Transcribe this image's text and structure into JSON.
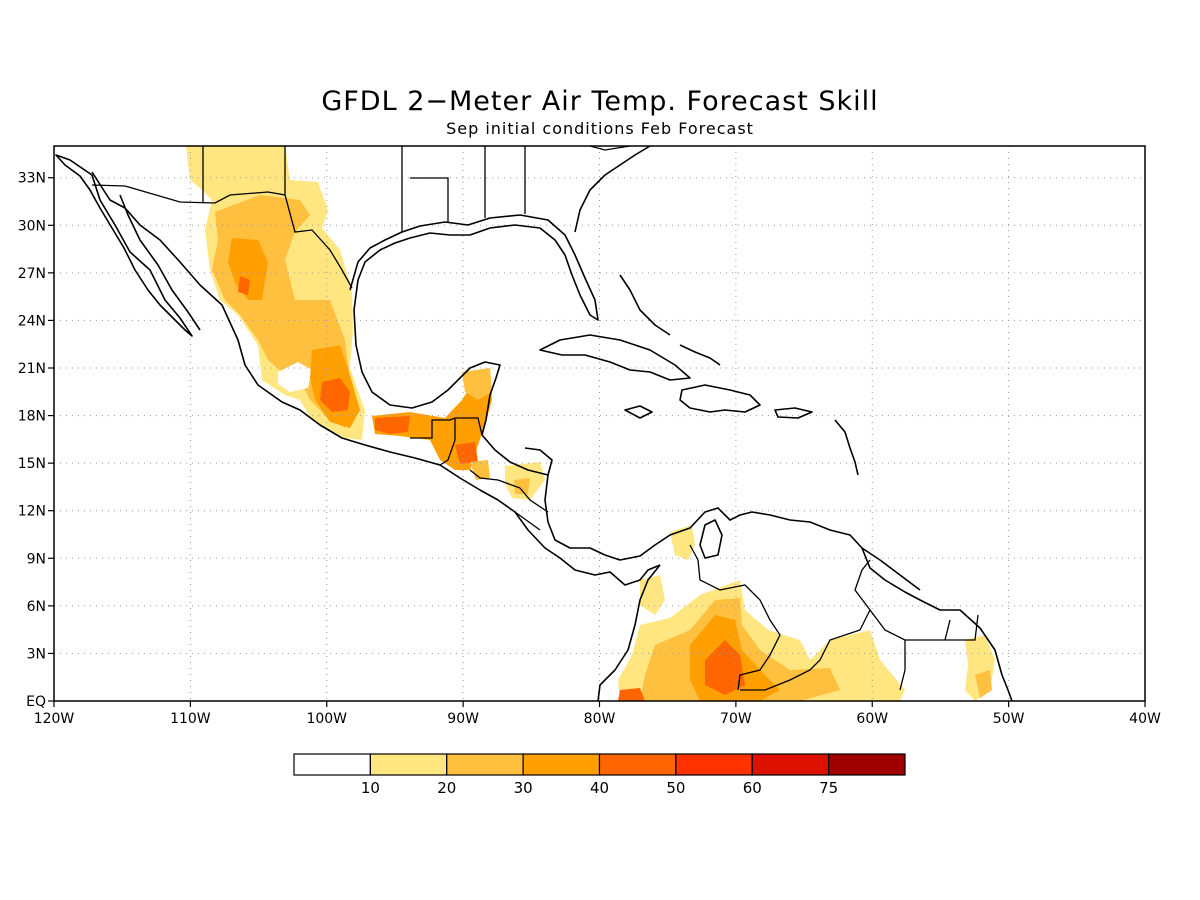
{
  "title": "GFDL 2−Meter Air Temp. Forecast Skill",
  "subtitle": "Sep initial conditions  Feb Forecast",
  "map": {
    "projection": "equirectangular",
    "lon_range": [
      -120,
      -40
    ],
    "lat_range": [
      0,
      35
    ],
    "lon_ticks": [
      {
        "lon": -120,
        "label": "120W"
      },
      {
        "lon": -110,
        "label": "110W"
      },
      {
        "lon": -100,
        "label": "100W"
      },
      {
        "lon": -90,
        "label": "90W"
      },
      {
        "lon": -80,
        "label": "80W"
      },
      {
        "lon": -70,
        "label": "70W"
      },
      {
        "lon": -60,
        "label": "60W"
      },
      {
        "lon": -50,
        "label": "50W"
      },
      {
        "lon": -40,
        "label": "40W"
      }
    ],
    "lat_ticks": [
      {
        "lat": 0,
        "label": "EQ"
      },
      {
        "lat": 3,
        "label": "3N"
      },
      {
        "lat": 6,
        "label": "6N"
      },
      {
        "lat": 9,
        "label": "9N"
      },
      {
        "lat": 12,
        "label": "12N"
      },
      {
        "lat": 15,
        "label": "15N"
      },
      {
        "lat": 18,
        "label": "18N"
      },
      {
        "lat": 21,
        "label": "21N"
      },
      {
        "lat": 24,
        "label": "24N"
      },
      {
        "lat": 27,
        "label": "27N"
      },
      {
        "lat": 30,
        "label": "30N"
      },
      {
        "lat": 33,
        "label": "33N"
      }
    ],
    "grid": "dotted"
  },
  "colorbar": {
    "levels": [
      10,
      20,
      30,
      40,
      50,
      60,
      75
    ],
    "colors": [
      "#ffffff",
      "#ffe680",
      "#ffc040",
      "#ffa000",
      "#ff6600",
      "#ff3300",
      "#dd1100",
      "#a00000"
    ]
  }
}
